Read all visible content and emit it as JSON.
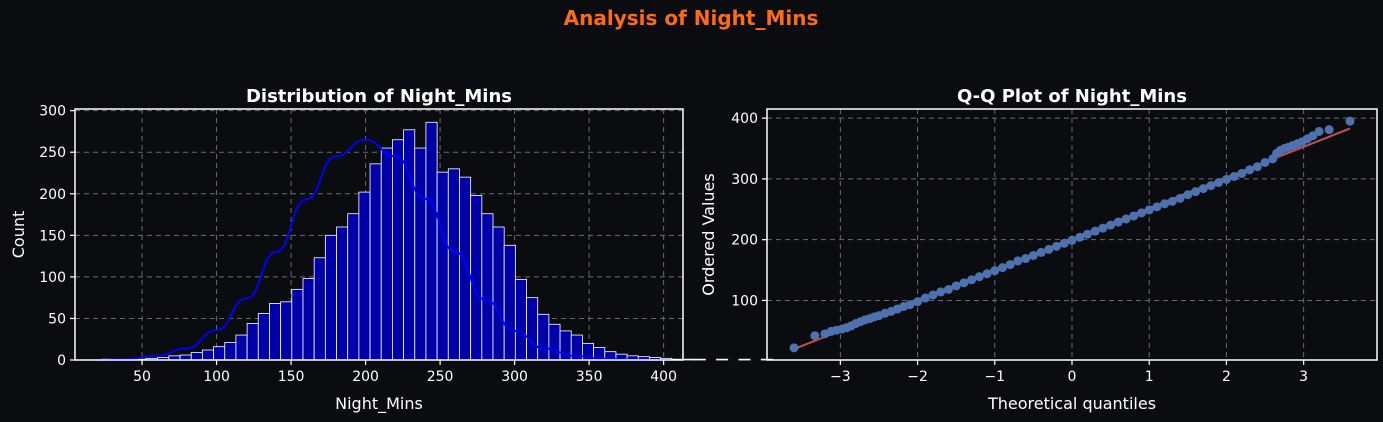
{
  "figure": {
    "suptitle": "Analysis of Night_Mins",
    "suptitle_color": "#ff6a13",
    "background": "#0b0c10"
  },
  "chart_data": [
    {
      "type": "bar",
      "subtype": "histogram",
      "title": "Distribution of Night_Mins",
      "xlabel": "Night_Mins",
      "ylabel": "Count",
      "bin_start": 23,
      "bin_width": 7.5,
      "values": [
        1,
        0,
        1,
        1,
        2,
        3,
        5,
        6,
        9,
        12,
        16,
        21,
        30,
        44,
        56,
        68,
        70,
        85,
        98,
        123,
        150,
        160,
        176,
        202,
        236,
        255,
        265,
        277,
        255,
        286,
        226,
        230,
        220,
        198,
        176,
        160,
        138,
        97,
        75,
        55,
        43,
        35,
        30,
        20,
        15,
        10,
        7,
        5,
        4,
        3,
        2,
        1,
        1,
        1,
        0,
        1,
        0,
        1,
        0,
        1
      ],
      "xlim": [
        5,
        413
      ],
      "ylim": [
        0,
        302
      ],
      "xticks": [
        50,
        100,
        150,
        200,
        250,
        300,
        350,
        400
      ],
      "yticks": [
        0,
        50,
        100,
        150,
        200,
        250,
        300
      ],
      "kde": {
        "x": [
          20,
          40,
          60,
          80,
          100,
          120,
          140,
          160,
          180,
          200,
          220,
          240,
          260,
          280,
          300,
          320,
          340,
          360,
          380,
          400
        ],
        "y": [
          0,
          1,
          5,
          14,
          36,
          74,
          130,
          193,
          245,
          265,
          245,
          194,
          130,
          73,
          35,
          14,
          5,
          1.5,
          0.4,
          0
        ]
      },
      "bar_color": "#0000a8",
      "edge_color": "#ffffff",
      "kde_color": "#0000ff",
      "grid": true
    },
    {
      "type": "scatter",
      "title": "Q-Q Plot of Night_Mins",
      "xlabel": "Theoretical quantiles",
      "ylabel": "Ordered Values",
      "xlim": [
        -3.95,
        3.95
      ],
      "ylim": [
        2,
        415
      ],
      "xticks": [
        -3,
        -2,
        -1,
        0,
        1,
        2,
        3
      ],
      "xtick_labels": [
        "−3",
        "−2",
        "−1",
        "0",
        "1",
        "2",
        "3"
      ],
      "yticks": [
        100,
        200,
        300,
        400
      ],
      "fit_line": {
        "x": [
          -3.6,
          3.6
        ],
        "y": [
          20,
          383
        ]
      },
      "points": {
        "x": [
          -3.6,
          -3.33,
          -3.2,
          -3.12,
          -3.05,
          -2.98,
          -2.92,
          -2.86,
          -2.8,
          -2.74,
          -2.68,
          -2.62,
          -2.56,
          -2.5,
          -2.42,
          -2.34,
          -2.26,
          -2.18,
          -2.1,
          -2.0,
          -1.9,
          -1.8,
          -1.7,
          -1.6,
          -1.5,
          -1.4,
          -1.3,
          -1.2,
          -1.1,
          -1.0,
          -0.9,
          -0.8,
          -0.7,
          -0.6,
          -0.5,
          -0.4,
          -0.3,
          -0.2,
          -0.1,
          0.0,
          0.1,
          0.2,
          0.3,
          0.4,
          0.5,
          0.6,
          0.7,
          0.8,
          0.9,
          1.0,
          1.1,
          1.2,
          1.3,
          1.4,
          1.5,
          1.6,
          1.7,
          1.8,
          1.9,
          2.0,
          2.1,
          2.2,
          2.3,
          2.4,
          2.5,
          2.6,
          2.65,
          2.7,
          2.75,
          2.8,
          2.86,
          2.92,
          2.98,
          3.05,
          3.12,
          3.2,
          3.33,
          3.6
        ],
        "y": [
          22,
          42,
          45,
          49,
          51,
          53,
          55,
          58,
          62,
          65,
          68,
          70,
          73,
          75,
          79,
          82,
          86,
          90,
          93,
          98,
          104,
          109,
          114,
          118,
          124,
          129,
          134,
          139,
          144,
          149,
          154,
          159,
          165,
          169,
          174,
          179,
          184,
          189,
          194,
          199,
          204,
          209,
          214,
          219,
          224,
          229,
          234,
          239,
          244,
          249,
          254,
          259,
          263,
          268,
          274,
          279,
          284,
          289,
          294,
          299,
          304,
          309,
          315,
          320,
          327,
          333,
          342,
          347,
          350,
          352,
          355,
          358,
          361,
          366,
          371,
          378,
          381,
          395
        ]
      },
      "marker_color": "#4c72b0",
      "line_color": "#c44e52",
      "grid": true
    }
  ]
}
